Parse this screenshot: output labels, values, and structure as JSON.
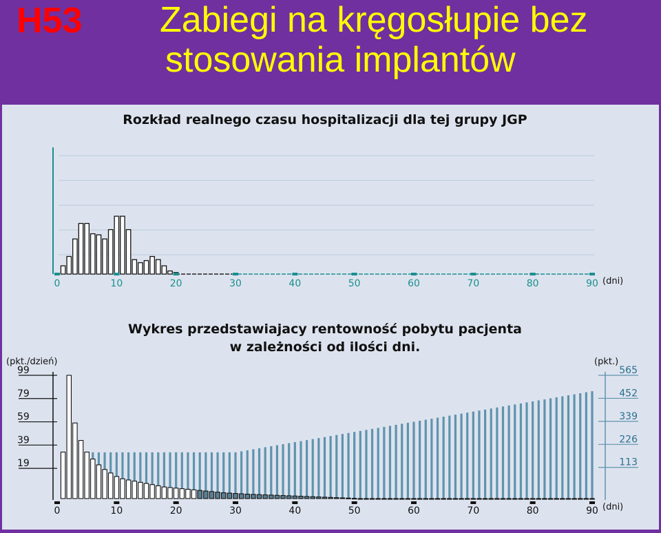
{
  "header": {
    "code": "H53",
    "title_line1": "Zabiegi na kręgosłupie bez",
    "title_line2": "stosowania implantów"
  },
  "colors": {
    "background": "#7030a0",
    "panel": "#dde3ee",
    "code": "#ff0000",
    "title": "#ffff00",
    "axis": "#1a8f8f",
    "grid": "#b8c8dc",
    "bar_steel": "#5f93ad"
  },
  "chart_data": [
    {
      "type": "bar",
      "title": "Rozkład realnego czasu hospitalizacji dla tej grupy JGP",
      "xunit": "(dni)",
      "x_ticks": [
        "0",
        "10",
        "20",
        "30",
        "40",
        "50",
        "60",
        "70",
        "80",
        "90"
      ],
      "xlim": [
        0,
        90
      ],
      "ylim": [
        0,
        12
      ],
      "grid": true,
      "x": [
        1,
        2,
        3,
        4,
        5,
        6,
        7,
        8,
        9,
        10,
        11,
        12,
        13,
        14,
        15,
        16,
        17,
        18,
        19,
        20
      ],
      "values": [
        0.8,
        1.7,
        3.4,
        4.9,
        4.9,
        3.9,
        3.8,
        3.4,
        4.3,
        5.6,
        5.6,
        4.3,
        1.4,
        1.1,
        1.3,
        1.7,
        1.4,
        0.8,
        0.3,
        0.15
      ]
    },
    {
      "type": "bar",
      "title_line1": "Wykres przedstawiajacy rentowność pobytu pacjenta",
      "title_line2": "w zależności od ilości dni.",
      "left_unit": "(pkt./dzień)",
      "right_unit": "(pkt.)",
      "xunit": "(dni)",
      "left_ticks": [
        "99",
        "79",
        "59",
        "39",
        "19"
      ],
      "right_ticks": [
        "565",
        "452",
        "339",
        "226",
        "113"
      ],
      "x_ticks": [
        "0",
        "10",
        "20",
        "30",
        "40",
        "50",
        "60",
        "70",
        "80",
        "90"
      ],
      "xlim": [
        0,
        90
      ],
      "ylim_left": [
        -7,
        99
      ],
      "ylim_right": [
        -40,
        565
      ],
      "grid": true,
      "days": [
        1,
        2,
        3,
        4,
        5,
        6,
        7,
        8,
        9,
        10,
        11,
        12,
        13,
        14,
        15,
        16,
        17,
        18,
        19,
        20,
        21,
        22,
        23,
        24,
        25,
        26,
        27,
        28,
        29,
        30,
        31,
        32,
        33,
        34,
        35,
        36,
        37,
        38,
        39,
        40,
        41,
        42,
        43,
        44,
        45,
        46,
        47,
        48,
        49,
        50,
        51,
        52,
        53,
        54,
        55,
        56,
        57,
        58,
        59,
        60,
        61,
        62,
        63,
        64,
        65,
        66,
        67,
        68,
        69,
        70,
        71,
        72,
        73,
        74,
        75,
        76,
        77,
        78,
        79,
        80,
        81,
        82,
        83,
        84,
        85,
        86,
        87,
        88,
        89,
        90
      ],
      "series": [
        {
          "values": [
            33,
            99,
            58,
            43,
            33,
            27,
            22,
            18,
            15,
            12,
            10,
            9,
            8,
            7,
            6,
            5,
            4,
            3,
            2.5,
            2,
            1.5,
            1,
            0.5,
            0,
            -0.5,
            -1,
            -1.5,
            -2,
            -2.3,
            -2.6,
            -2.9,
            -3.2,
            -3.4,
            -3.6,
            -3.8,
            -4,
            -4.2,
            -4.4,
            -4.6,
            -4.8,
            -5,
            -5.2,
            -5.4,
            -5.6,
            -5.8,
            -6,
            -6.2,
            -6.4,
            -6.6,
            -6.8,
            -7,
            -7,
            -7,
            -7,
            -7,
            -7,
            -7,
            -7,
            -7,
            -7,
            -7,
            -7,
            -7,
            -7,
            -7,
            -7,
            -7,
            -7,
            -7,
            -7,
            -7,
            -7,
            -7,
            -7,
            -7,
            -7,
            -7,
            -7,
            -7,
            -7,
            -7,
            -7,
            -7,
            -7,
            -7,
            -7,
            -7,
            -7,
            -7,
            -7
          ]
        },
        {
          "values": [
            187,
            187,
            187,
            187,
            187,
            187,
            187,
            187,
            187,
            187,
            187,
            187,
            187,
            187,
            187,
            187,
            187,
            187,
            187,
            187,
            187,
            187,
            187,
            187,
            187,
            187,
            187,
            187,
            187,
            187,
            192,
            197,
            202,
            207,
            212,
            217,
            222,
            227,
            232,
            237,
            242,
            247,
            252,
            257,
            262,
            267,
            272,
            277,
            282,
            287,
            292,
            297,
            302,
            307,
            312,
            317,
            322,
            327,
            332,
            337,
            342,
            347,
            352,
            357,
            362,
            367,
            372,
            377,
            382,
            387,
            392,
            397,
            402,
            407,
            412,
            417,
            422,
            427,
            432,
            437,
            442,
            447,
            452,
            457,
            462,
            467,
            472,
            477,
            482,
            487
          ]
        }
      ]
    }
  ]
}
